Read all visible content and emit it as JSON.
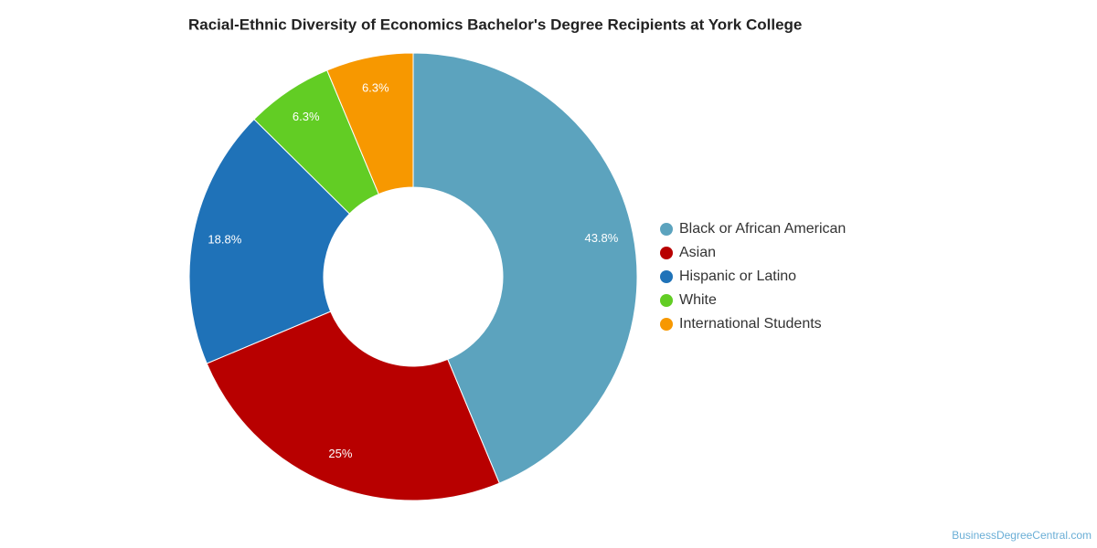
{
  "chart_data": {
    "type": "donut",
    "title": "Racial-Ethnic Diversity of Economics Bachelor's Degree Recipients at York College",
    "categories": [
      "Black or African American",
      "Asian",
      "Hispanic or Latino",
      "White",
      "International Students"
    ],
    "values": [
      43.8,
      25,
      18.8,
      6.3,
      6.3
    ],
    "value_labels": [
      "43.8%",
      "25%",
      "18.8%",
      "6.3%",
      "6.3%"
    ],
    "colors": [
      "#5ca3be",
      "#b80000",
      "#1f72b8",
      "#62cd24",
      "#f79800"
    ],
    "legend": "right",
    "watermark": "BusinessDegreeCentral.com"
  }
}
